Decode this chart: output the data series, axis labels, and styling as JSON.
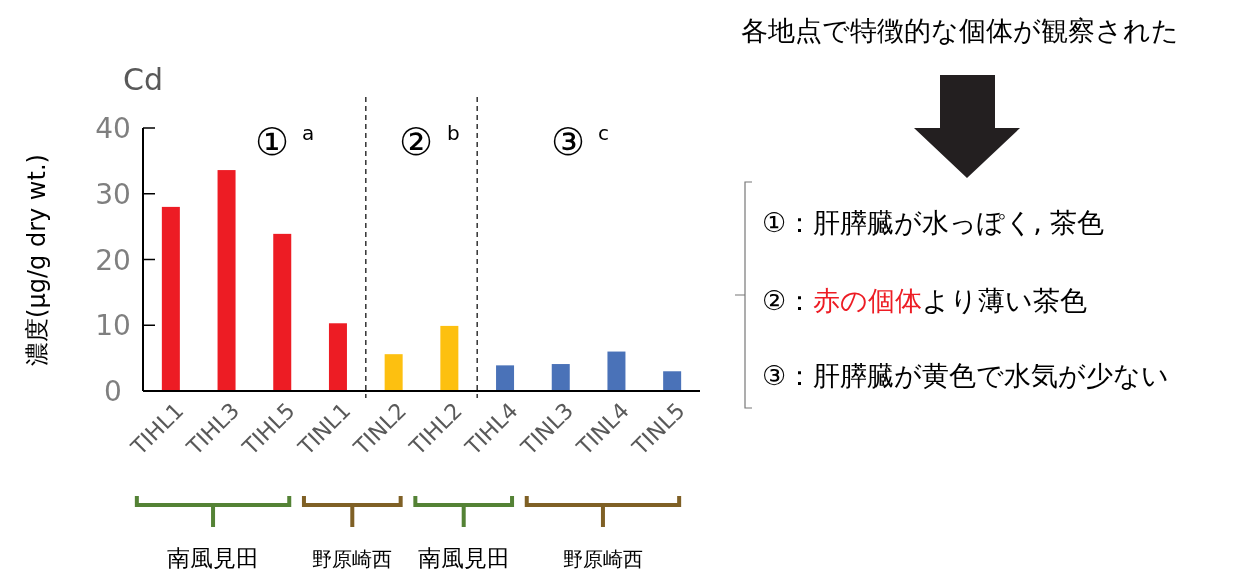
{
  "chart_data": {
    "type": "bar",
    "title": "Cd",
    "ylabel": "濃度(μg/g dry wt.)",
    "categories": [
      "TIHL1",
      "TIHL3",
      "TIHL5",
      "TINL1",
      "TINL2",
      "TIHL2",
      "TIHL4",
      "TINL3",
      "TINL4",
      "TINL5"
    ],
    "values": [
      28,
      33.6,
      23.9,
      10.3,
      5.6,
      9.9,
      3.9,
      4.1,
      6.0,
      3.0
    ],
    "colors": [
      "#ed1c24",
      "#ed1c24",
      "#ed1c24",
      "#ed1c24",
      "#fdc010",
      "#fdc010",
      "#4a72b8",
      "#4a72b8",
      "#4a72b8",
      "#4a72b8"
    ],
    "ylim": [
      0,
      40
    ],
    "yticks": [
      0,
      10,
      20,
      30,
      40
    ],
    "annotations": [
      "①",
      "a",
      "②",
      "b",
      "③",
      "c",
      "南風見田",
      "野原崎西",
      "南風見田",
      "野原崎西",
      "各地点で特徴的な個体が観察された",
      "①：肝膵臓が水っぽく, 茶色",
      "②：",
      "赤の個体",
      "より薄い茶色",
      "③：肝膵臓が黄色で水気が少ない"
    ]
  }
}
